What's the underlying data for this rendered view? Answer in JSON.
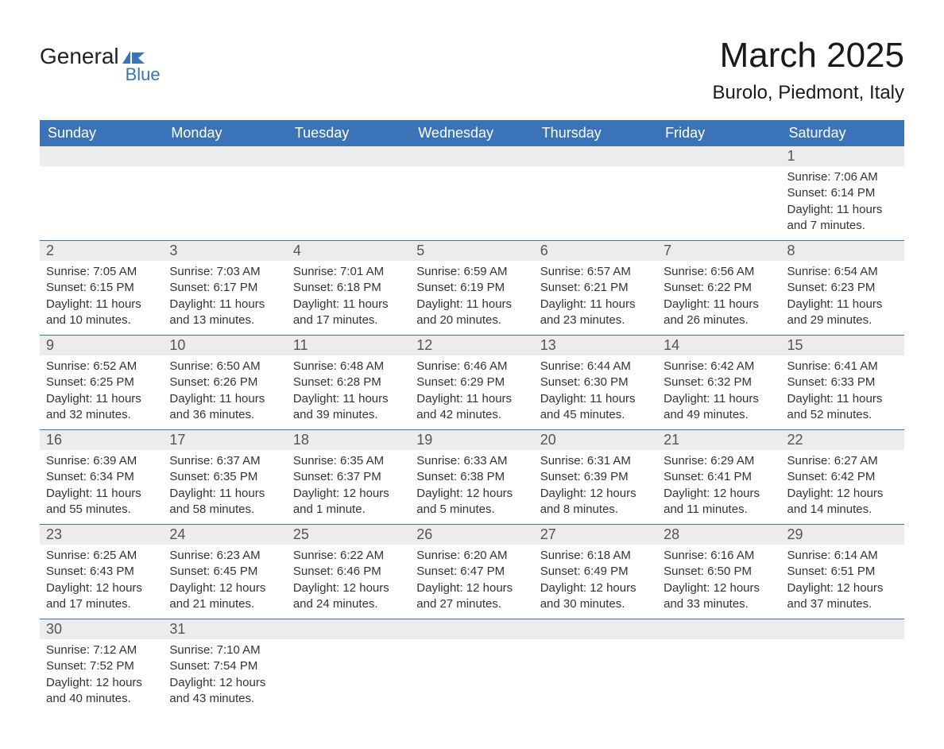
{
  "logo": {
    "text1": "General",
    "text2": "Blue"
  },
  "title": "March 2025",
  "location": "Burolo, Piedmont, Italy",
  "colors": {
    "header_bg": "#3b73b9",
    "header_text": "#ffffff",
    "daynum_bg": "#ececec",
    "border": "#3b73b9",
    "text": "#333333"
  },
  "fonts": {
    "title_size": 44,
    "location_size": 24,
    "header_size": 18,
    "daynum_size": 18,
    "body_size": 15
  },
  "weekdays": [
    "Sunday",
    "Monday",
    "Tuesday",
    "Wednesday",
    "Thursday",
    "Friday",
    "Saturday"
  ],
  "weeks": [
    [
      {
        "num": "",
        "sunrise": "",
        "sunset": "",
        "daylight": ""
      },
      {
        "num": "",
        "sunrise": "",
        "sunset": "",
        "daylight": ""
      },
      {
        "num": "",
        "sunrise": "",
        "sunset": "",
        "daylight": ""
      },
      {
        "num": "",
        "sunrise": "",
        "sunset": "",
        "daylight": ""
      },
      {
        "num": "",
        "sunrise": "",
        "sunset": "",
        "daylight": ""
      },
      {
        "num": "",
        "sunrise": "",
        "sunset": "",
        "daylight": ""
      },
      {
        "num": "1",
        "sunrise": "Sunrise: 7:06 AM",
        "sunset": "Sunset: 6:14 PM",
        "daylight": "Daylight: 11 hours and 7 minutes."
      }
    ],
    [
      {
        "num": "2",
        "sunrise": "Sunrise: 7:05 AM",
        "sunset": "Sunset: 6:15 PM",
        "daylight": "Daylight: 11 hours and 10 minutes."
      },
      {
        "num": "3",
        "sunrise": "Sunrise: 7:03 AM",
        "sunset": "Sunset: 6:17 PM",
        "daylight": "Daylight: 11 hours and 13 minutes."
      },
      {
        "num": "4",
        "sunrise": "Sunrise: 7:01 AM",
        "sunset": "Sunset: 6:18 PM",
        "daylight": "Daylight: 11 hours and 17 minutes."
      },
      {
        "num": "5",
        "sunrise": "Sunrise: 6:59 AM",
        "sunset": "Sunset: 6:19 PM",
        "daylight": "Daylight: 11 hours and 20 minutes."
      },
      {
        "num": "6",
        "sunrise": "Sunrise: 6:57 AM",
        "sunset": "Sunset: 6:21 PM",
        "daylight": "Daylight: 11 hours and 23 minutes."
      },
      {
        "num": "7",
        "sunrise": "Sunrise: 6:56 AM",
        "sunset": "Sunset: 6:22 PM",
        "daylight": "Daylight: 11 hours and 26 minutes."
      },
      {
        "num": "8",
        "sunrise": "Sunrise: 6:54 AM",
        "sunset": "Sunset: 6:23 PM",
        "daylight": "Daylight: 11 hours and 29 minutes."
      }
    ],
    [
      {
        "num": "9",
        "sunrise": "Sunrise: 6:52 AM",
        "sunset": "Sunset: 6:25 PM",
        "daylight": "Daylight: 11 hours and 32 minutes."
      },
      {
        "num": "10",
        "sunrise": "Sunrise: 6:50 AM",
        "sunset": "Sunset: 6:26 PM",
        "daylight": "Daylight: 11 hours and 36 minutes."
      },
      {
        "num": "11",
        "sunrise": "Sunrise: 6:48 AM",
        "sunset": "Sunset: 6:28 PM",
        "daylight": "Daylight: 11 hours and 39 minutes."
      },
      {
        "num": "12",
        "sunrise": "Sunrise: 6:46 AM",
        "sunset": "Sunset: 6:29 PM",
        "daylight": "Daylight: 11 hours and 42 minutes."
      },
      {
        "num": "13",
        "sunrise": "Sunrise: 6:44 AM",
        "sunset": "Sunset: 6:30 PM",
        "daylight": "Daylight: 11 hours and 45 minutes."
      },
      {
        "num": "14",
        "sunrise": "Sunrise: 6:42 AM",
        "sunset": "Sunset: 6:32 PM",
        "daylight": "Daylight: 11 hours and 49 minutes."
      },
      {
        "num": "15",
        "sunrise": "Sunrise: 6:41 AM",
        "sunset": "Sunset: 6:33 PM",
        "daylight": "Daylight: 11 hours and 52 minutes."
      }
    ],
    [
      {
        "num": "16",
        "sunrise": "Sunrise: 6:39 AM",
        "sunset": "Sunset: 6:34 PM",
        "daylight": "Daylight: 11 hours and 55 minutes."
      },
      {
        "num": "17",
        "sunrise": "Sunrise: 6:37 AM",
        "sunset": "Sunset: 6:35 PM",
        "daylight": "Daylight: 11 hours and 58 minutes."
      },
      {
        "num": "18",
        "sunrise": "Sunrise: 6:35 AM",
        "sunset": "Sunset: 6:37 PM",
        "daylight": "Daylight: 12 hours and 1 minute."
      },
      {
        "num": "19",
        "sunrise": "Sunrise: 6:33 AM",
        "sunset": "Sunset: 6:38 PM",
        "daylight": "Daylight: 12 hours and 5 minutes."
      },
      {
        "num": "20",
        "sunrise": "Sunrise: 6:31 AM",
        "sunset": "Sunset: 6:39 PM",
        "daylight": "Daylight: 12 hours and 8 minutes."
      },
      {
        "num": "21",
        "sunrise": "Sunrise: 6:29 AM",
        "sunset": "Sunset: 6:41 PM",
        "daylight": "Daylight: 12 hours and 11 minutes."
      },
      {
        "num": "22",
        "sunrise": "Sunrise: 6:27 AM",
        "sunset": "Sunset: 6:42 PM",
        "daylight": "Daylight: 12 hours and 14 minutes."
      }
    ],
    [
      {
        "num": "23",
        "sunrise": "Sunrise: 6:25 AM",
        "sunset": "Sunset: 6:43 PM",
        "daylight": "Daylight: 12 hours and 17 minutes."
      },
      {
        "num": "24",
        "sunrise": "Sunrise: 6:23 AM",
        "sunset": "Sunset: 6:45 PM",
        "daylight": "Daylight: 12 hours and 21 minutes."
      },
      {
        "num": "25",
        "sunrise": "Sunrise: 6:22 AM",
        "sunset": "Sunset: 6:46 PM",
        "daylight": "Daylight: 12 hours and 24 minutes."
      },
      {
        "num": "26",
        "sunrise": "Sunrise: 6:20 AM",
        "sunset": "Sunset: 6:47 PM",
        "daylight": "Daylight: 12 hours and 27 minutes."
      },
      {
        "num": "27",
        "sunrise": "Sunrise: 6:18 AM",
        "sunset": "Sunset: 6:49 PM",
        "daylight": "Daylight: 12 hours and 30 minutes."
      },
      {
        "num": "28",
        "sunrise": "Sunrise: 6:16 AM",
        "sunset": "Sunset: 6:50 PM",
        "daylight": "Daylight: 12 hours and 33 minutes."
      },
      {
        "num": "29",
        "sunrise": "Sunrise: 6:14 AM",
        "sunset": "Sunset: 6:51 PM",
        "daylight": "Daylight: 12 hours and 37 minutes."
      }
    ],
    [
      {
        "num": "30",
        "sunrise": "Sunrise: 7:12 AM",
        "sunset": "Sunset: 7:52 PM",
        "daylight": "Daylight: 12 hours and 40 minutes."
      },
      {
        "num": "31",
        "sunrise": "Sunrise: 7:10 AM",
        "sunset": "Sunset: 7:54 PM",
        "daylight": "Daylight: 12 hours and 43 minutes."
      },
      {
        "num": "",
        "sunrise": "",
        "sunset": "",
        "daylight": ""
      },
      {
        "num": "",
        "sunrise": "",
        "sunset": "",
        "daylight": ""
      },
      {
        "num": "",
        "sunrise": "",
        "sunset": "",
        "daylight": ""
      },
      {
        "num": "",
        "sunrise": "",
        "sunset": "",
        "daylight": ""
      },
      {
        "num": "",
        "sunrise": "",
        "sunset": "",
        "daylight": ""
      }
    ]
  ]
}
